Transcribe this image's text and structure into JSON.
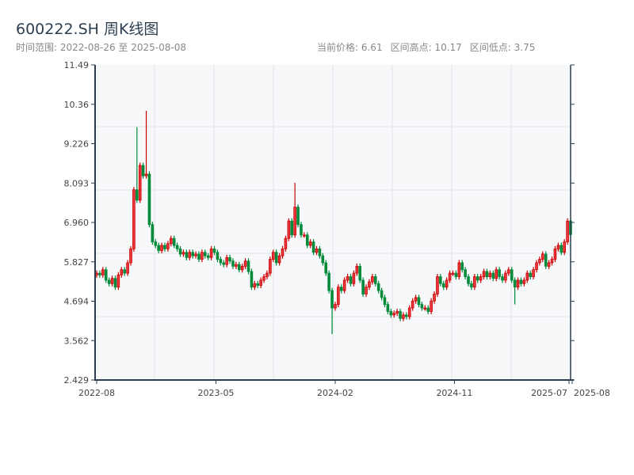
{
  "header": {
    "title": "600222.SH 周K线图",
    "range": "时间范围: 2022-08-26 至 2025-08-08",
    "current_price": "当前价格: 6.61",
    "range_high": "区间高点: 10.17",
    "range_low": "区间低点: 3.75"
  },
  "colors": {
    "up": "#cc0000",
    "up_fill": "#e8383d",
    "down": "#008a3a",
    "axis": "#2c3e50",
    "grid": "#e2e5ea",
    "plot_bg": "#f7f8fa"
  },
  "chart_data": {
    "type": "candlestick",
    "title": "600222.SH 周K线图",
    "ylim": [
      2.429,
      11.49
    ],
    "yticks": [
      "2.429",
      "3.562",
      "4.694",
      "5.827",
      "6.960",
      "8.093",
      "9.226",
      "10.36",
      "11.49"
    ],
    "xticks": [
      "2022-08",
      "2023-05",
      "2024-02",
      "2024-11",
      "2025-07",
      "2025-08"
    ],
    "xtick_weeks": [
      0,
      38.5,
      77,
      115.5,
      152.5,
      153.5
    ],
    "first_open": 5.45,
    "closes": [
      5.5,
      5.45,
      5.6,
      5.3,
      5.2,
      5.35,
      5.1,
      5.45,
      5.6,
      5.5,
      5.8,
      6.2,
      7.9,
      7.6,
      8.6,
      8.3,
      8.35,
      6.9,
      6.4,
      6.3,
      6.15,
      6.3,
      6.2,
      6.35,
      6.5,
      6.3,
      6.2,
      6.05,
      6.1,
      5.95,
      6.1,
      6.0,
      6.05,
      5.9,
      6.1,
      6.0,
      5.95,
      6.2,
      6.1,
      5.9,
      5.8,
      5.75,
      5.95,
      5.85,
      5.7,
      5.75,
      5.6,
      5.7,
      5.85,
      5.55,
      5.1,
      5.2,
      5.15,
      5.3,
      5.4,
      5.5,
      5.9,
      6.1,
      5.8,
      6.0,
      6.2,
      6.5,
      7.0,
      6.6,
      7.4,
      6.9,
      6.6,
      6.6,
      6.3,
      6.4,
      6.1,
      6.2,
      6.0,
      5.8,
      5.5,
      5.0,
      4.5,
      4.6,
      5.1,
      5.0,
      5.3,
      5.4,
      5.2,
      5.5,
      5.7,
      5.3,
      4.9,
      5.1,
      5.25,
      5.4,
      5.2,
      5.0,
      4.8,
      4.6,
      4.4,
      4.3,
      4.35,
      4.4,
      4.2,
      4.3,
      4.25,
      4.5,
      4.7,
      4.8,
      4.6,
      4.5,
      4.5,
      4.4,
      4.7,
      4.9,
      5.4,
      5.2,
      5.1,
      5.3,
      5.5,
      5.5,
      5.4,
      5.8,
      5.6,
      5.4,
      5.2,
      5.1,
      5.4,
      5.3,
      5.4,
      5.55,
      5.4,
      5.5,
      5.35,
      5.6,
      5.4,
      5.3,
      5.5,
      5.6,
      5.3,
      5.1,
      5.3,
      5.2,
      5.3,
      5.5,
      5.4,
      5.6,
      5.8,
      5.9,
      6.05,
      5.7,
      5.8,
      5.9,
      6.2,
      6.3,
      6.1,
      6.4,
      7.0,
      6.61
    ],
    "extremes": [
      {
        "week": 13,
        "high": 9.7
      },
      {
        "week": 16,
        "high": 10.17
      },
      {
        "week": 64,
        "high": 8.1
      },
      {
        "week": 76,
        "low": 3.75
      },
      {
        "week": 135,
        "low": 4.6
      }
    ]
  }
}
